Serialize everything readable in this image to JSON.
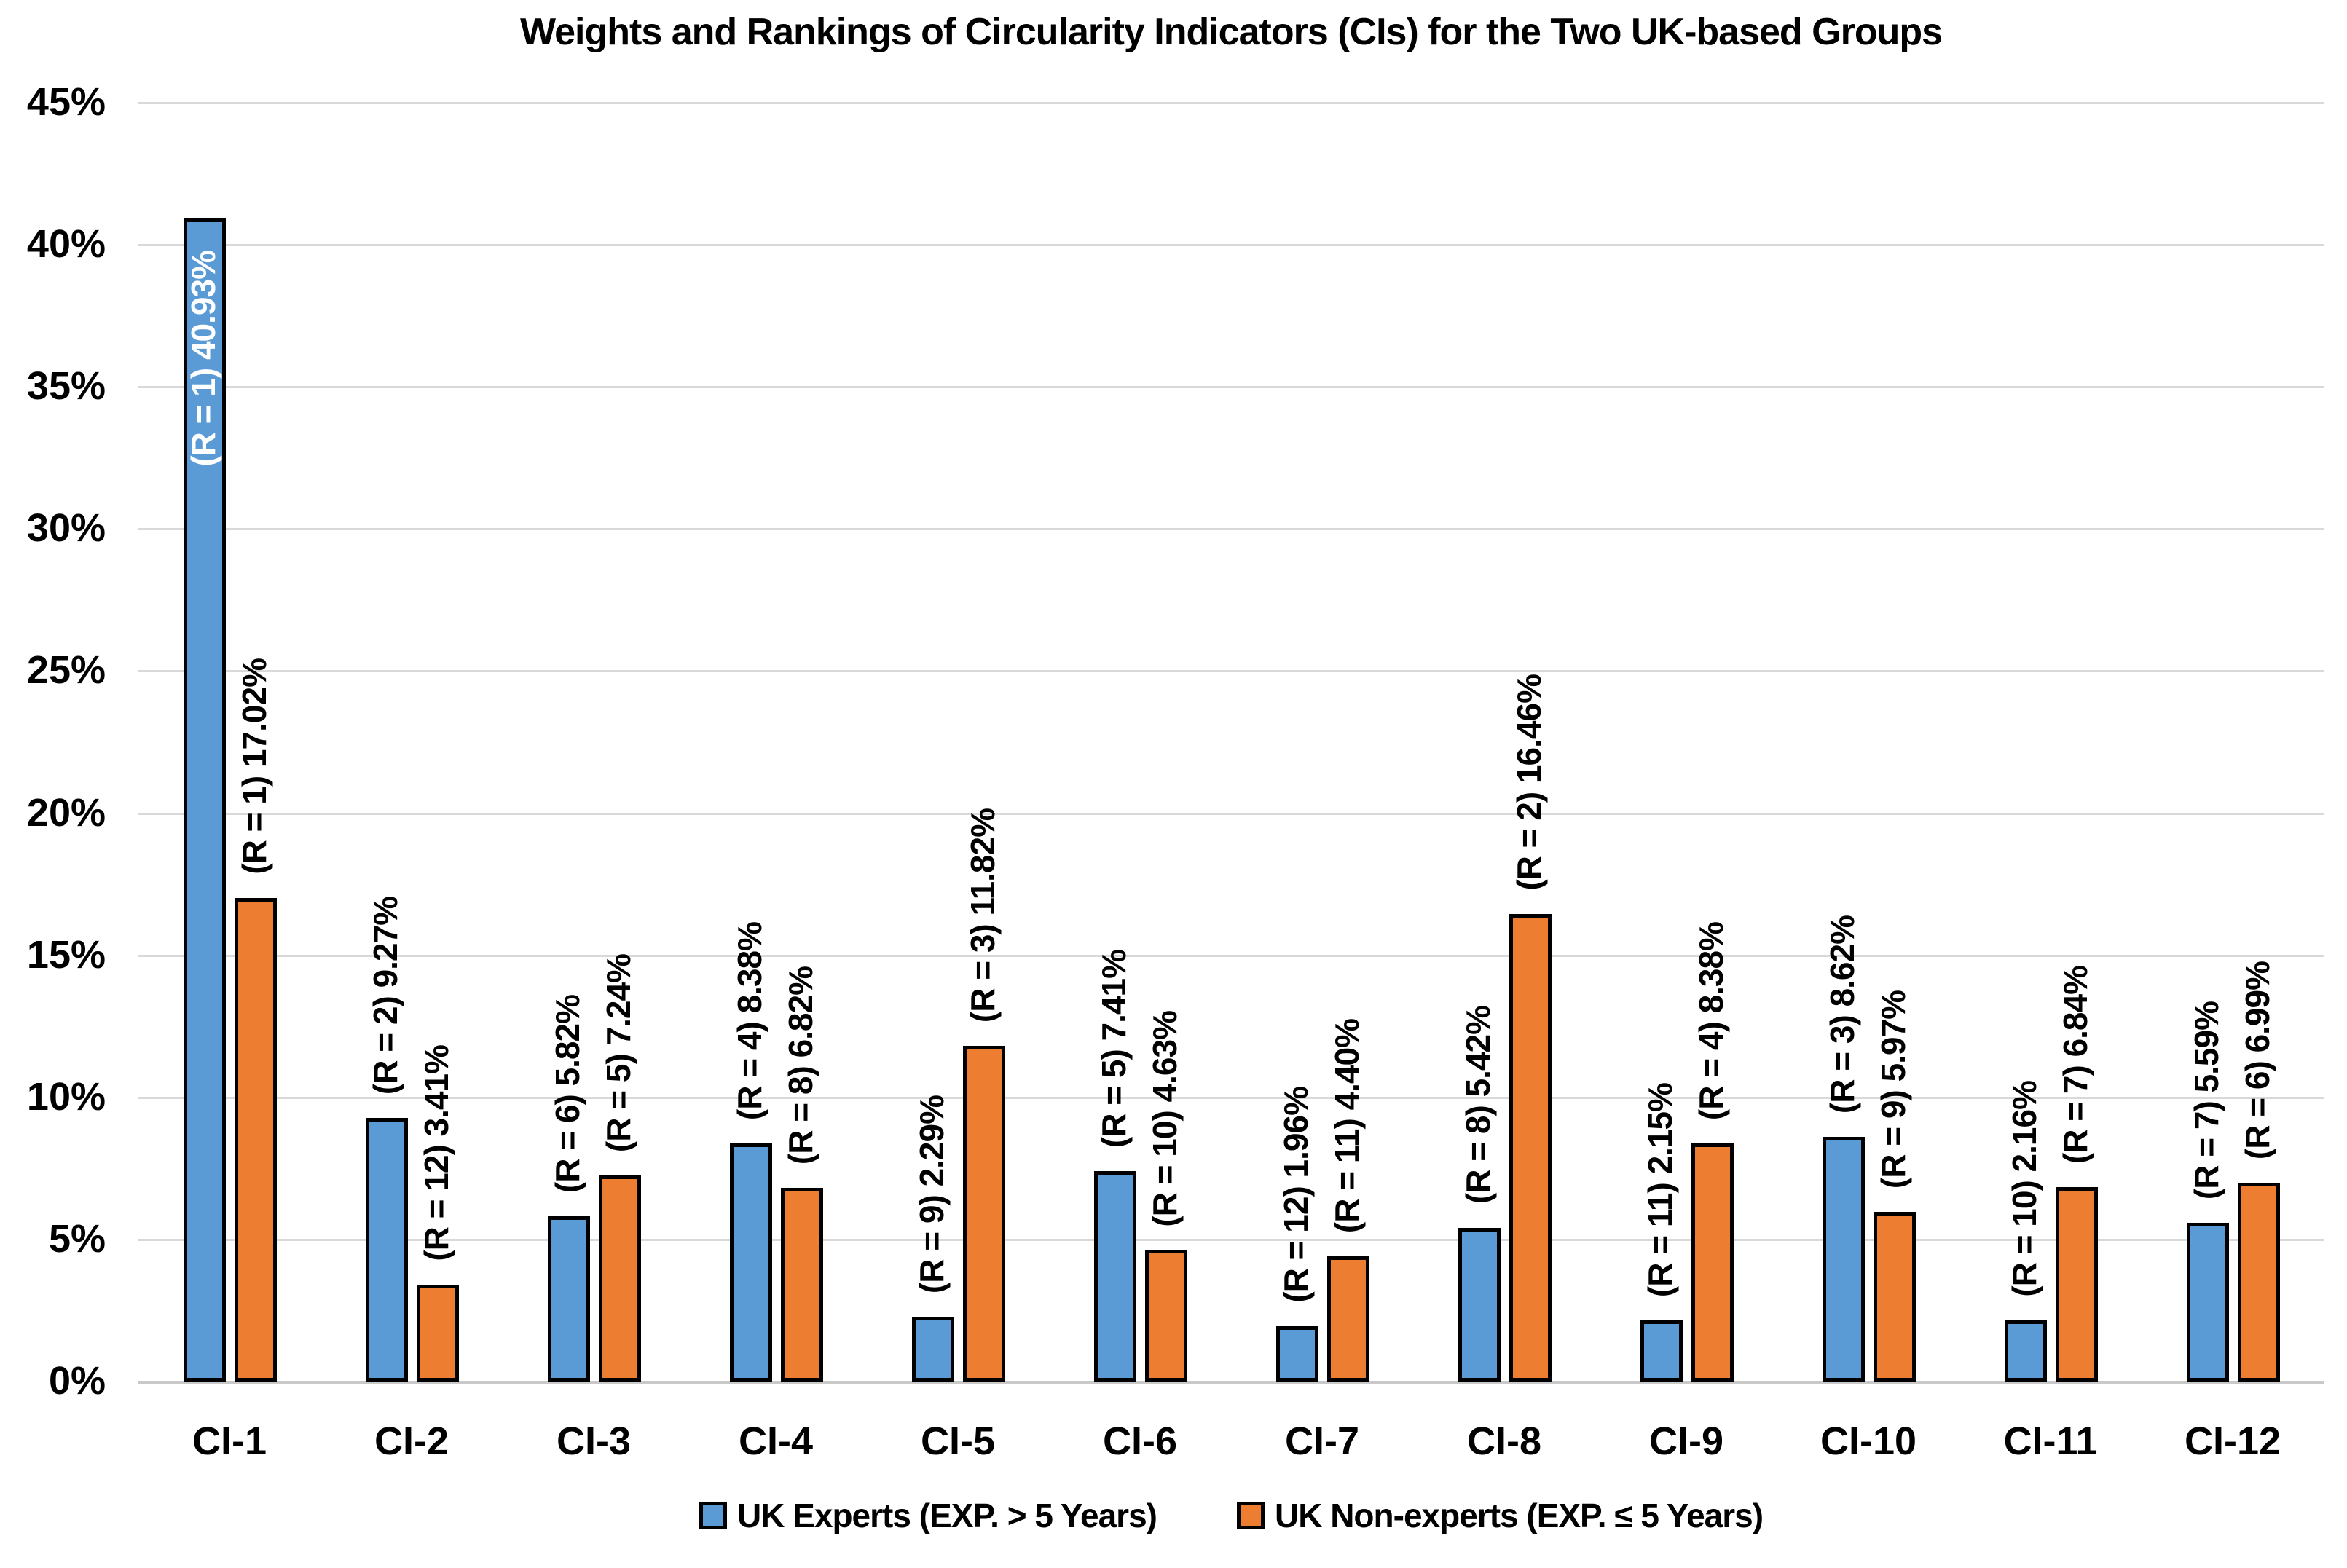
{
  "title": "Weights and Rankings of Circularity Indicators (CIs) for the Two UK-based Groups",
  "chart_data": {
    "type": "bar",
    "title": "Weights and Rankings of Circularity Indicators (CIs) for the Two UK-based Groups",
    "categories": [
      "CI-1",
      "CI-2",
      "CI-3",
      "CI-4",
      "CI-5",
      "CI-6",
      "CI-7",
      "CI-8",
      "CI-9",
      "CI-10",
      "CI-11",
      "CI-12"
    ],
    "series": [
      {
        "name": "UK Experts (EXP. > 5 Years)",
        "color": "#5B9BD5",
        "values": [
          40.93,
          9.27,
          5.82,
          8.38,
          2.29,
          7.41,
          1.96,
          5.42,
          2.15,
          8.62,
          2.16,
          5.59
        ],
        "ranks": [
          1,
          2,
          6,
          4,
          9,
          5,
          12,
          8,
          11,
          3,
          10,
          7
        ],
        "labels": [
          "(R = 1) 40.93%",
          "(R = 2) 9.27%",
          "(R = 6) 5.82%",
          "(R = 4) 8.38%",
          "(R = 9) 2.29%",
          "(R = 5) 7.41%",
          "(R = 12) 1.96%",
          "(R = 8) 5.42%",
          "(R = 11) 2.15%",
          "(R = 3) 8.62%",
          "(R = 10) 2.16%",
          "(R = 7) 5.59%"
        ]
      },
      {
        "name": "UK Non-experts (EXP. ≤ 5 Years)",
        "color": "#ED7D31",
        "values": [
          17.02,
          3.41,
          7.24,
          6.82,
          11.82,
          4.63,
          4.4,
          16.46,
          8.38,
          5.97,
          6.84,
          6.99
        ],
        "ranks": [
          1,
          12,
          5,
          8,
          3,
          10,
          11,
          2,
          4,
          9,
          7,
          6
        ],
        "labels": [
          "(R = 1) 17.02%",
          "(R = 12) 3.41%",
          "(R = 5) 7.24%",
          "(R = 8) 6.82%",
          "(R = 3) 11.82%",
          "(R = 10) 4.63%",
          "(R = 11) 4.40%",
          "(R = 2) 16.46%",
          "(R = 4) 8.38%",
          "(R = 9) 5.97%",
          "(R = 7) 6.84%",
          "(R = 6) 6.99%"
        ]
      }
    ],
    "ylim": [
      0,
      45
    ],
    "ytick_step": 5,
    "ytick_labels": [
      "0%",
      "5%",
      "10%",
      "15%",
      "20%",
      "25%",
      "30%",
      "35%",
      "40%",
      "45%"
    ],
    "grid": true,
    "legend_position": "bottom",
    "label_inside_bar": {
      "series": 0,
      "index": 0
    }
  },
  "colors": {
    "experts": "#5B9BD5",
    "non_experts": "#ED7D31",
    "gridline": "#D9D9D9",
    "bar_border": "#000000",
    "text": "#000000",
    "background": "#FFFFFF"
  }
}
